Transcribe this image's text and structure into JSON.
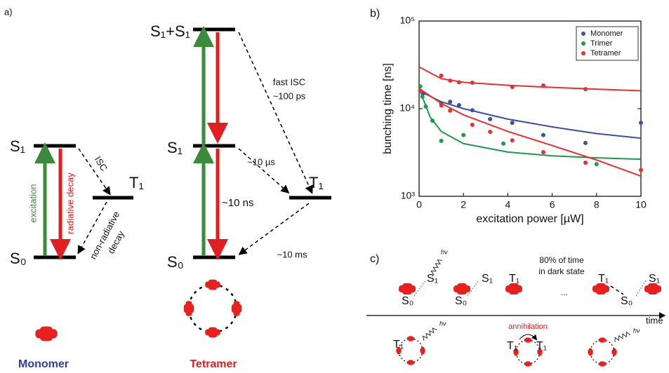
{
  "panel_a": {
    "label": "a)",
    "monomer": {
      "s1": "S₁",
      "s0": "S₀",
      "t1": "T₁",
      "excitation": "excitation",
      "radiative": "radiative decay",
      "isc": "ISC",
      "nonrad_1": "non-radiative",
      "nonrad_2": "decay",
      "name": "Monomer"
    },
    "tetramer": {
      "s1s1": "S₁+S₁",
      "s1": "S₁",
      "s0": "S₀",
      "t1": "T₁",
      "fast_isc_1": "fast ISC",
      "fast_isc_2": "~100 ps",
      "t_us": "~10 µs",
      "t_ns": "~10 ns",
      "t_ms": "~10 ms",
      "name": "Tetramer"
    }
  },
  "chart_data": {
    "type": "scatter",
    "panel_label": "b)",
    "x_label": "excitation power [µW]",
    "y_label": "bunching time [ns]",
    "xlim": [
      0,
      10
    ],
    "xticks": [
      0,
      2,
      4,
      6,
      8,
      10
    ],
    "ylim": [
      1000,
      100000
    ],
    "log_y": true,
    "yticks": [
      {
        "value": 1000,
        "label": "10³"
      },
      {
        "value": 10000,
        "label": "10⁴"
      },
      {
        "value": 100000,
        "label": "10⁵"
      }
    ],
    "legend": "upper right",
    "series": [
      {
        "name": "Monomer",
        "color": "#3a4fa8",
        "x": [
          0.05,
          0.2,
          1,
          1.4,
          1.8,
          2.4,
          3.2,
          4.2,
          5.6,
          7.5,
          10
        ],
        "values": [
          16000,
          15000,
          11400,
          12000,
          11000,
          9600,
          7600,
          6900,
          5000,
          4060,
          6900
        ],
        "fit": [
          {
            "x": [
              0,
              1,
              2,
              4,
              6,
              8,
              10
            ],
            "values": [
              16000,
              12000,
              10000,
              7600,
              6200,
              5200,
              4600
            ]
          }
        ]
      },
      {
        "name": "Trimer",
        "color": "#1e9a4a",
        "x": [
          0.05,
          0.15,
          0.3,
          0.6,
          1,
          2,
          3.8,
          8
        ],
        "values": [
          18000,
          13700,
          10600,
          7300,
          4300,
          5000,
          4000,
          2330
        ],
        "fit": [
          {
            "x": [
              0,
              0.5,
              1,
              2,
              4,
              6,
              8,
              10
            ],
            "values": [
              17000,
              8000,
              5500,
              4000,
              3200,
              2900,
              2750,
              2650
            ]
          }
        ]
      },
      {
        "name": "Tetramer",
        "color": "#e8312f",
        "x": [
          0.05,
          1,
          1.4,
          1.8,
          2.4,
          4.2,
          5.6,
          7.5,
          1,
          1.4,
          2.4,
          3.2,
          4.2,
          5.6,
          7.5,
          10
        ],
        "values": [
          16000,
          23800,
          20900,
          20000,
          19800,
          17700,
          18400,
          16700,
          10900,
          9500,
          6550,
          5450,
          4360,
          3190,
          2420,
          2000
        ],
        "fit": [
          {
            "x": [
              0,
              1,
              2,
              4,
              6,
              8,
              10
            ],
            "values": [
              30000,
              22000,
              20000,
              18500,
              17500,
              16700,
              16000
            ]
          },
          {
            "x": [
              0,
              1,
              2,
              4,
              6,
              8,
              10
            ],
            "values": [
              17000,
              11500,
              8500,
              5500,
              3800,
              2600,
              1700
            ]
          }
        ]
      }
    ]
  },
  "panel_c": {
    "label": "c)",
    "s0_a": "S₀",
    "s1_a": "S₁",
    "hv_a": "hν",
    "s0_b": "S₀",
    "s1_b": "S₁",
    "t1_a": "T₁",
    "dark_1": "80% of time",
    "dark_2": "in dark state",
    "dots": "...",
    "t1_b": "T₁",
    "s0_c": "S₀",
    "s1_c": "S₁",
    "time": "time",
    "t1_c": "T₁",
    "hv_b": "hν",
    "annihilation": "annihilation",
    "t1_d": "T₁",
    "t1_e": "T₁",
    "hv_c": "hν"
  }
}
